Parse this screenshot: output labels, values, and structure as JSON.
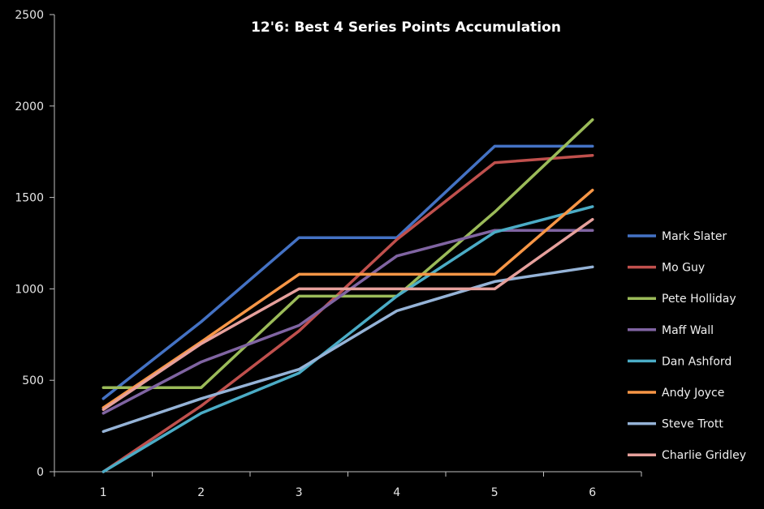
{
  "chart_data": {
    "type": "line",
    "title": "12'6: Best 4 Series Points Accumulation",
    "xlabel": "",
    "ylabel": "",
    "x": [
      1,
      2,
      3,
      4,
      5,
      6
    ],
    "x_tick_labels": [
      "1",
      "2",
      "3",
      "4",
      "5",
      "6"
    ],
    "ylim": [
      0,
      2500
    ],
    "y_ticks": [
      0,
      500,
      1000,
      1500,
      2000,
      2500
    ],
    "y_tick_labels": [
      "0",
      "500",
      "1000",
      "1500",
      "2000",
      "2500"
    ],
    "grid": false,
    "legend_position": "right",
    "series": [
      {
        "name": "Mark Slater",
        "color": "#4472c4",
        "values": [
          400,
          820,
          1280,
          1280,
          1780,
          1780
        ]
      },
      {
        "name": "Mo Guy",
        "color": "#c0504d",
        "values": [
          0,
          360,
          770,
          1270,
          1690,
          1730
        ]
      },
      {
        "name": "Pete Holliday",
        "color": "#9bbb59",
        "values": [
          460,
          460,
          960,
          960,
          1420,
          1925
        ]
      },
      {
        "name": "Maff Wall",
        "color": "#8064a2",
        "values": [
          320,
          600,
          800,
          1180,
          1320,
          1320
        ]
      },
      {
        "name": "Dan Ashford",
        "color": "#4bacc6",
        "values": [
          0,
          320,
          540,
          960,
          1310,
          1450
        ]
      },
      {
        "name": "Andy Joyce",
        "color": "#f79646",
        "values": [
          350,
          710,
          1080,
          1080,
          1080,
          1540
        ]
      },
      {
        "name": "Steve Trott",
        "color": "#95b3d7",
        "values": [
          220,
          400,
          560,
          880,
          1040,
          1120
        ]
      },
      {
        "name": "Charlie Gridley",
        "color": "#e6a09c",
        "values": [
          340,
          700,
          1000,
          1000,
          1000,
          1380
        ]
      }
    ]
  }
}
